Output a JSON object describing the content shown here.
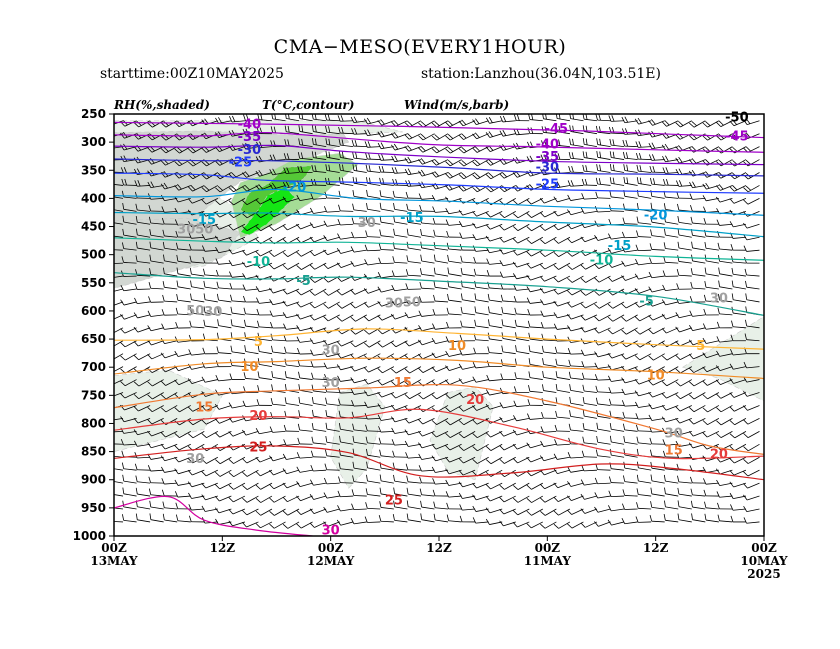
{
  "title": "CMA−MESO(EVERY1HOUR)",
  "starttime": "starttime:00Z10MAY2025",
  "station": "station:Lanzhou(36.04N,103.51E)",
  "chart_data": {
    "type": "time-height cross section (shaded RH, T contours, wind barbs)",
    "headers": [
      "RH(%,shaded)",
      "T(°C,contour)",
      "Wind(m/s,barb)"
    ],
    "y_axis": {
      "unit": "hPa",
      "ticks": [
        250,
        300,
        350,
        400,
        450,
        500,
        550,
        600,
        650,
        700,
        750,
        800,
        850,
        900,
        950,
        1000
      ]
    },
    "x_axis": {
      "note": "time runs right-to-left: 00Z10MAY2025 at right, 00Z13MAY at left",
      "range_hours": [
        0,
        72
      ],
      "ticks": [
        {
          "h": 72,
          "top": "00Z",
          "bottom": "13MAY"
        },
        {
          "h": 60,
          "top": "12Z",
          "bottom": ""
        },
        {
          "h": 48,
          "top": "00Z",
          "bottom": "12MAY"
        },
        {
          "h": 36,
          "top": "12Z",
          "bottom": ""
        },
        {
          "h": 24,
          "top": "00Z",
          "bottom": "11MAY"
        },
        {
          "h": 12,
          "top": "12Z",
          "bottom": ""
        },
        {
          "h": 0,
          "top": "00Z",
          "bottom": "10MAY",
          "extra": "2025"
        }
      ]
    },
    "temperature_contours": [
      {
        "value": -45,
        "color": "#a000c8",
        "points": [
          [
            72,
            265
          ],
          [
            55,
            268
          ],
          [
            40,
            272
          ],
          [
            30,
            276
          ],
          [
            20,
            280
          ],
          [
            10,
            286
          ],
          [
            0,
            292
          ]
        ]
      },
      {
        "value": -40,
        "color": "#a000c8",
        "points": [
          [
            72,
            287
          ],
          [
            62,
            289
          ],
          [
            55,
            283
          ],
          [
            45,
            295
          ],
          [
            36,
            305
          ],
          [
            26,
            308
          ],
          [
            16,
            312
          ],
          [
            6,
            316
          ],
          [
            0,
            318
          ]
        ]
      },
      {
        "value": -35,
        "color": "#7d00c8",
        "points": [
          [
            72,
            307
          ],
          [
            62,
            309
          ],
          [
            54,
            306
          ],
          [
            46,
            317
          ],
          [
            36,
            326
          ],
          [
            24,
            334
          ],
          [
            14,
            337
          ],
          [
            0,
            340
          ]
        ]
      },
      {
        "value": -30,
        "color": "#2828d2",
        "points": [
          [
            72,
            330
          ],
          [
            62,
            333
          ],
          [
            55,
            333
          ],
          [
            45,
            338
          ],
          [
            35,
            345
          ],
          [
            24,
            355
          ],
          [
            12,
            357
          ],
          [
            0,
            360
          ]
        ]
      },
      {
        "value": -25,
        "color": "#1e3cff",
        "points": [
          [
            72,
            355
          ],
          [
            62,
            358
          ],
          [
            55,
            368
          ],
          [
            46,
            371
          ],
          [
            35,
            376
          ],
          [
            24,
            384
          ],
          [
            12,
            388
          ],
          [
            0,
            391
          ]
        ]
      },
      {
        "value": -20,
        "color": "#0096dc",
        "points": [
          [
            72,
            395
          ],
          [
            62,
            397
          ],
          [
            54,
            384
          ],
          [
            45,
            400
          ],
          [
            35,
            405
          ],
          [
            24,
            414
          ],
          [
            12,
            421
          ],
          [
            0,
            430
          ]
        ]
      },
      {
        "value": -15,
        "color": "#00a0c8",
        "points": [
          [
            72,
            425
          ],
          [
            62,
            427
          ],
          [
            55,
            426
          ],
          [
            46,
            432
          ],
          [
            36,
            432
          ],
          [
            24,
            442
          ],
          [
            12,
            451
          ],
          [
            0,
            468
          ]
        ]
      },
      {
        "value": -10,
        "color": "#10b496",
        "points": [
          [
            72,
            470
          ],
          [
            62,
            476
          ],
          [
            54,
            479
          ],
          [
            46,
            478
          ],
          [
            36,
            484
          ],
          [
            24,
            492
          ],
          [
            12,
            503
          ],
          [
            0,
            510
          ]
        ]
      },
      {
        "value": -5,
        "color": "#18a090",
        "points": [
          [
            72,
            532
          ],
          [
            62,
            542
          ],
          [
            54,
            543
          ],
          [
            46,
            540
          ],
          [
            36,
            547
          ],
          [
            24,
            557
          ],
          [
            12,
            574
          ],
          [
            0,
            608
          ]
        ]
      },
      {
        "value": 5,
        "color": "#ffb432",
        "points": [
          [
            72,
            652
          ],
          [
            62,
            651
          ],
          [
            54,
            644
          ],
          [
            44,
            632
          ],
          [
            34,
            640
          ],
          [
            24,
            650
          ],
          [
            12,
            660
          ],
          [
            0,
            668
          ]
        ]
      },
      {
        "value": 10,
        "color": "#f08c28",
        "points": [
          [
            72,
            712
          ],
          [
            62,
            694
          ],
          [
            54,
            690
          ],
          [
            44,
            684
          ],
          [
            34,
            688
          ],
          [
            24,
            700
          ],
          [
            12,
            708
          ],
          [
            0,
            720
          ]
        ]
      },
      {
        "value": 15,
        "color": "#f07832",
        "points": [
          [
            72,
            772
          ],
          [
            62,
            748
          ],
          [
            54,
            742
          ],
          [
            44,
            737
          ],
          [
            34,
            732
          ],
          [
            24,
            760
          ],
          [
            12,
            810
          ],
          [
            6,
            840
          ],
          [
            0,
            855
          ]
        ]
      },
      {
        "value": 20,
        "color": "#e63c3c",
        "points": [
          [
            72,
            812
          ],
          [
            62,
            792
          ],
          [
            54,
            788
          ],
          [
            46,
            790
          ],
          [
            38,
            775
          ],
          [
            28,
            805
          ],
          [
            18,
            846
          ],
          [
            10,
            862
          ],
          [
            0,
            858
          ]
        ]
      },
      {
        "value": 25,
        "color": "#d21e1e",
        "points": [
          [
            72,
            862
          ],
          [
            62,
            845
          ],
          [
            54,
            840
          ],
          [
            46,
            852
          ],
          [
            38,
            893
          ],
          [
            28,
            888
          ],
          [
            18,
            872
          ],
          [
            10,
            880
          ],
          [
            0,
            900
          ]
        ]
      },
      {
        "value": 30,
        "color": "#d200a0",
        "points": [
          [
            72,
            950
          ],
          [
            66,
            930
          ],
          [
            62,
            972
          ],
          [
            56,
            990
          ],
          [
            50,
            1000
          ]
        ]
      }
    ],
    "temperature_labels": [
      {
        "text": "-45",
        "h": 23,
        "p": 277
      },
      {
        "text": "-45",
        "h": 3,
        "p": 290
      },
      {
        "text": "-50",
        "h": 3,
        "p": 256
      },
      {
        "text": "-40",
        "h": 57,
        "p": 269
      },
      {
        "text": "-40",
        "h": 24,
        "p": 304
      },
      {
        "text": "-35",
        "h": 57,
        "p": 291
      },
      {
        "text": "-35",
        "h": 24,
        "p": 326
      },
      {
        "text": "-30",
        "h": 57,
        "p": 314
      },
      {
        "text": "-30",
        "h": 24,
        "p": 345
      },
      {
        "text": "-25",
        "h": 58,
        "p": 336
      },
      {
        "text": "-25",
        "h": 24,
        "p": 375
      },
      {
        "text": "-20",
        "h": 52,
        "p": 381
      },
      {
        "text": "-20",
        "h": 12,
        "p": 430
      },
      {
        "text": "-15",
        "h": 62,
        "p": 438
      },
      {
        "text": "-15",
        "h": 39,
        "p": 435
      },
      {
        "text": "-15",
        "h": 16,
        "p": 485
      },
      {
        "text": "-10",
        "h": 56,
        "p": 513
      },
      {
        "text": "-10",
        "h": 18,
        "p": 510
      },
      {
        "text": "-5",
        "h": 51,
        "p": 547
      },
      {
        "text": "-5",
        "h": 13,
        "p": 583
      },
      {
        "text": "5",
        "h": 56,
        "p": 655
      },
      {
        "text": "5",
        "h": 7,
        "p": 662
      },
      {
        "text": "10",
        "h": 57,
        "p": 700
      },
      {
        "text": "10",
        "h": 34,
        "p": 662
      },
      {
        "text": "10",
        "h": 12,
        "p": 715
      },
      {
        "text": "15",
        "h": 62,
        "p": 772
      },
      {
        "text": "15",
        "h": 40,
        "p": 728
      },
      {
        "text": "15",
        "h": 10,
        "p": 848
      },
      {
        "text": "20",
        "h": 56,
        "p": 787
      },
      {
        "text": "20",
        "h": 32,
        "p": 758
      },
      {
        "text": "20",
        "h": 5,
        "p": 855
      },
      {
        "text": "25",
        "h": 56,
        "p": 843
      },
      {
        "text": "25",
        "h": 41,
        "p": 937
      },
      {
        "text": "30",
        "h": 48,
        "p": 990
      }
    ],
    "rh_levels": [
      {
        "threshold": 30,
        "color": "#e8f0e8"
      },
      {
        "threshold": 50,
        "color": "#d2d7d2"
      },
      {
        "threshold": 70,
        "color": "#a5dc96"
      },
      {
        "threshold": 80,
        "color": "#55c837"
      },
      {
        "threshold": 90,
        "color": "#14e614"
      }
    ],
    "rh_regions": [
      {
        "level": 0,
        "points": [
          [
            72,
            390
          ],
          [
            62,
            385
          ],
          [
            58,
            420
          ],
          [
            56,
            470
          ],
          [
            62,
            520
          ],
          [
            72,
            540
          ]
        ]
      },
      {
        "level": 1,
        "points": [
          [
            72,
            265
          ],
          [
            52,
            265
          ],
          [
            47,
            275
          ],
          [
            46,
            300
          ],
          [
            52,
            338
          ],
          [
            58,
            370
          ],
          [
            62,
            420
          ],
          [
            64,
            475
          ],
          [
            72,
            498
          ]
        ]
      },
      {
        "level": 1,
        "points": [
          [
            72,
            440
          ],
          [
            64,
            435
          ],
          [
            58,
            460
          ],
          [
            60,
            505
          ],
          [
            72,
            560
          ]
        ]
      },
      {
        "level": 2,
        "points": [
          [
            59,
            405
          ],
          [
            58,
            372
          ],
          [
            55,
            355
          ],
          [
            52,
            330
          ],
          [
            47,
            320
          ],
          [
            45,
            340
          ],
          [
            49,
            395
          ],
          [
            54,
            445
          ],
          [
            58,
            470
          ]
        ]
      },
      {
        "level": 3,
        "points": [
          [
            58,
            420
          ],
          [
            57,
            390
          ],
          [
            55,
            375
          ],
          [
            53,
            345
          ],
          [
            50,
            342
          ],
          [
            51,
            365
          ],
          [
            55,
            400
          ],
          [
            56,
            440
          ]
        ]
      },
      {
        "level": 4,
        "points": [
          [
            58,
            460
          ],
          [
            56,
            420
          ],
          [
            55,
            395
          ],
          [
            53,
            380
          ],
          [
            52,
            398
          ],
          [
            55,
            445
          ],
          [
            57,
            465
          ]
        ]
      },
      {
        "level": 0,
        "points": [
          [
            72,
            715
          ],
          [
            66,
            705
          ],
          [
            60,
            750
          ],
          [
            62,
            810
          ],
          [
            72,
            850
          ]
        ]
      },
      {
        "level": 0,
        "points": [
          [
            47,
            745
          ],
          [
            44,
            730
          ],
          [
            42,
            770
          ],
          [
            44,
            880
          ],
          [
            46,
            915
          ],
          [
            48,
            860
          ]
        ]
      },
      {
        "level": 0,
        "points": [
          [
            35,
            745
          ],
          [
            32,
            735
          ],
          [
            30,
            770
          ],
          [
            32,
            900
          ],
          [
            35,
            885
          ],
          [
            37,
            830
          ]
        ]
      },
      {
        "level": 0,
        "points": [
          [
            9,
            700
          ],
          [
            4,
            650
          ],
          [
            0,
            610
          ],
          [
            0,
            760
          ],
          [
            5,
            720
          ]
        ]
      },
      {
        "level": 0,
        "points": [
          [
            72,
            262
          ],
          [
            45,
            262
          ],
          [
            40,
            282
          ],
          [
            52,
            288
          ],
          [
            62,
            280
          ],
          [
            72,
            283
          ]
        ]
      }
    ],
    "rh_labels": [
      {
        "text": "30",
        "h": 44,
        "p": 444
      },
      {
        "text": "30",
        "h": 61,
        "p": 602
      },
      {
        "text": "50",
        "h": 63,
        "p": 600
      },
      {
        "text": "30",
        "h": 48,
        "p": 670
      },
      {
        "text": "30",
        "h": 48,
        "p": 728
      },
      {
        "text": "30",
        "h": 63,
        "p": 863
      },
      {
        "text": "50",
        "h": 39,
        "p": 585
      },
      {
        "text": "30",
        "h": 41,
        "p": 587
      },
      {
        "text": "30",
        "h": 5,
        "p": 578
      },
      {
        "text": "30",
        "h": 64,
        "p": 455
      },
      {
        "text": "50",
        "h": 62,
        "p": 455
      },
      {
        "text": "30",
        "h": 10,
        "p": 818
      }
    ],
    "wind_barbs": "dense barbs on a regular grid; westerly flow aloft (about 15-25 m/s near 250-350 hPa) weakening to about 5-10 m/s in the lower troposphere"
  }
}
